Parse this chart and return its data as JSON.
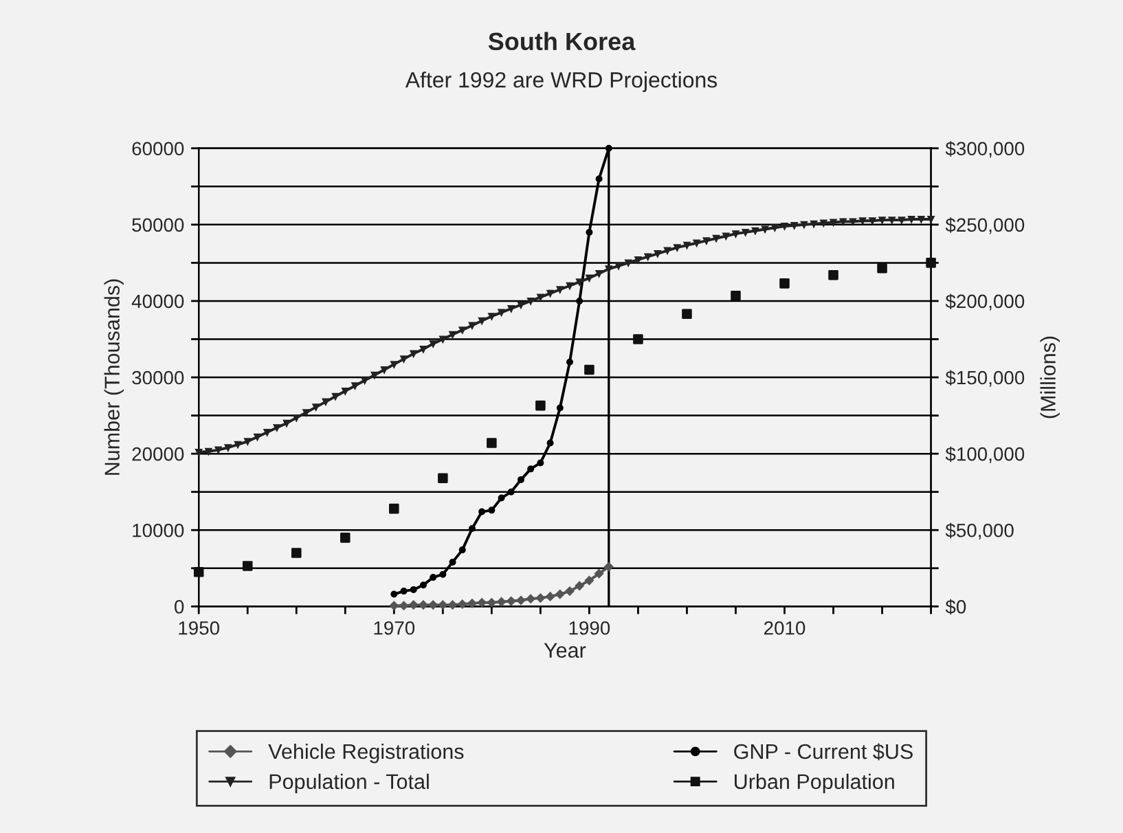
{
  "chart_data": {
    "type": "line",
    "title": "South Korea",
    "subtitle": "After 1992 are WRD Projections",
    "xlabel": "Year",
    "ylabel": "Number (Thousands)",
    "y2label": "(Millions)",
    "xlim": [
      1950,
      2025
    ],
    "xticks": [
      1950,
      {
        "value": 1955,
        "label": null
      },
      {
        "value": 1960,
        "label": null
      },
      {
        "value": 1965,
        "label": null
      },
      1970,
      {
        "value": 1975,
        "label": null
      },
      {
        "value": 1980,
        "label": null
      },
      {
        "value": 1985,
        "label": null
      },
      1990,
      {
        "value": 1995,
        "label": null
      },
      {
        "value": 2000,
        "label": null
      },
      {
        "value": 2005,
        "label": null
      },
      2010,
      {
        "value": 2015,
        "label": null
      },
      {
        "value": 2020,
        "label": null
      },
      {
        "value": 2025,
        "label": null
      }
    ],
    "ylim": [
      0,
      60000
    ],
    "yticks": [
      0,
      {
        "value": 5000,
        "label": null
      },
      10000,
      {
        "value": 15000,
        "label": null
      },
      20000,
      {
        "value": 25000,
        "label": null
      },
      30000,
      {
        "value": 35000,
        "label": null
      },
      40000,
      {
        "value": 45000,
        "label": null
      },
      50000,
      {
        "value": 55000,
        "label": null
      },
      60000
    ],
    "y2lim": [
      0,
      300000
    ],
    "y2ticks": [
      {
        "value": 0,
        "label": "$0"
      },
      {
        "value": 25000,
        "label": null
      },
      {
        "value": 50000,
        "label": "$50,000"
      },
      {
        "value": 75000,
        "label": null
      },
      {
        "value": 100000,
        "label": "$100,000"
      },
      {
        "value": 125000,
        "label": null
      },
      {
        "value": 150000,
        "label": "$150,000"
      },
      {
        "value": 175000,
        "label": null
      },
      {
        "value": 200000,
        "label": "$200,000"
      },
      {
        "value": 225000,
        "label": null
      },
      {
        "value": 250000,
        "label": "$250,000"
      },
      {
        "value": 275000,
        "label": null
      },
      {
        "value": 300000,
        "label": "$300,000"
      }
    ],
    "grid": "y",
    "legend": "bottom",
    "ref_lines": [
      {
        "axis": "x",
        "value": 1992,
        "color": "#000000"
      }
    ],
    "series": [
      {
        "name": "Vehicle Registrations",
        "color": "#555555",
        "marker": "diamond",
        "x": [
          1970,
          1971,
          1972,
          1973,
          1974,
          1975,
          1976,
          1977,
          1978,
          1979,
          1980,
          1981,
          1982,
          1983,
          1984,
          1985,
          1986,
          1987,
          1988,
          1989,
          1990,
          1991,
          1992
        ],
        "values": [
          100,
          100,
          200,
          200,
          200,
          200,
          200,
          300,
          400,
          500,
          500,
          600,
          700,
          800,
          1000,
          1100,
          1300,
          1600,
          2000,
          2700,
          3400,
          4300,
          5200
        ]
      },
      {
        "name": "Population - Total",
        "color": "#222222",
        "marker": "triangle",
        "x": [
          1950,
          1951,
          1952,
          1953,
          1954,
          1955,
          1956,
          1957,
          1958,
          1959,
          1960,
          1961,
          1962,
          1963,
          1964,
          1965,
          1966,
          1967,
          1968,
          1969,
          1970,
          1971,
          1972,
          1973,
          1974,
          1975,
          1976,
          1977,
          1978,
          1979,
          1980,
          1981,
          1982,
          1983,
          1984,
          1985,
          1986,
          1987,
          1988,
          1989,
          1990,
          1991,
          1992,
          1993,
          1994,
          1995,
          1996,
          1997,
          1998,
          1999,
          2000,
          2001,
          2002,
          2003,
          2004,
          2005,
          2006,
          2007,
          2008,
          2009,
          2010,
          2011,
          2012,
          2013,
          2014,
          2015,
          2016,
          2017,
          2018,
          2019,
          2020,
          2021,
          2022,
          2023,
          2024,
          2025
        ],
        "values": [
          20200,
          20300,
          20500,
          20800,
          21200,
          21600,
          22200,
          22800,
          23400,
          24000,
          24700,
          25400,
          26100,
          26800,
          27500,
          28200,
          28900,
          29600,
          30300,
          31000,
          31700,
          32400,
          33100,
          33700,
          34400,
          35000,
          35600,
          36200,
          36800,
          37400,
          38000,
          38500,
          39000,
          39500,
          40000,
          40500,
          41000,
          41500,
          42000,
          42500,
          43000,
          43600,
          44200,
          44600,
          45000,
          45400,
          45800,
          46200,
          46600,
          47000,
          47300,
          47600,
          47900,
          48200,
          48500,
          48800,
          49000,
          49200,
          49400,
          49600,
          49800,
          49900,
          50000,
          50100,
          50200,
          50300,
          50400,
          50400,
          50500,
          50500,
          50600,
          50600,
          50600,
          50700,
          50700,
          50700
        ]
      },
      {
        "name": "GNP - Current $US",
        "axis": "y2",
        "color": "#000000",
        "marker": "circle",
        "x": [
          1970,
          1971,
          1972,
          1973,
          1974,
          1975,
          1976,
          1977,
          1978,
          1979,
          1980,
          1981,
          1982,
          1983,
          1984,
          1985,
          1986,
          1987,
          1988,
          1989,
          1990,
          1991,
          1992
        ],
        "values": [
          8000,
          10000,
          11000,
          14000,
          19000,
          21000,
          29000,
          37000,
          51000,
          62000,
          63000,
          71000,
          75000,
          83000,
          90000,
          94000,
          107000,
          130000,
          160000,
          200000,
          245000,
          280000,
          300000
        ]
      },
      {
        "name": "Urban Population",
        "type": "scatter",
        "color": "#111111",
        "marker": "square",
        "x": [
          1950,
          1955,
          1960,
          1965,
          1970,
          1975,
          1980,
          1985,
          1990,
          1995,
          2000,
          2005,
          2010,
          2015,
          2020,
          2025
        ],
        "values": [
          4500,
          5300,
          7000,
          9000,
          12800,
          16800,
          21400,
          26300,
          31000,
          35000,
          38300,
          40700,
          42300,
          43400,
          44300,
          45000
        ]
      }
    ]
  }
}
